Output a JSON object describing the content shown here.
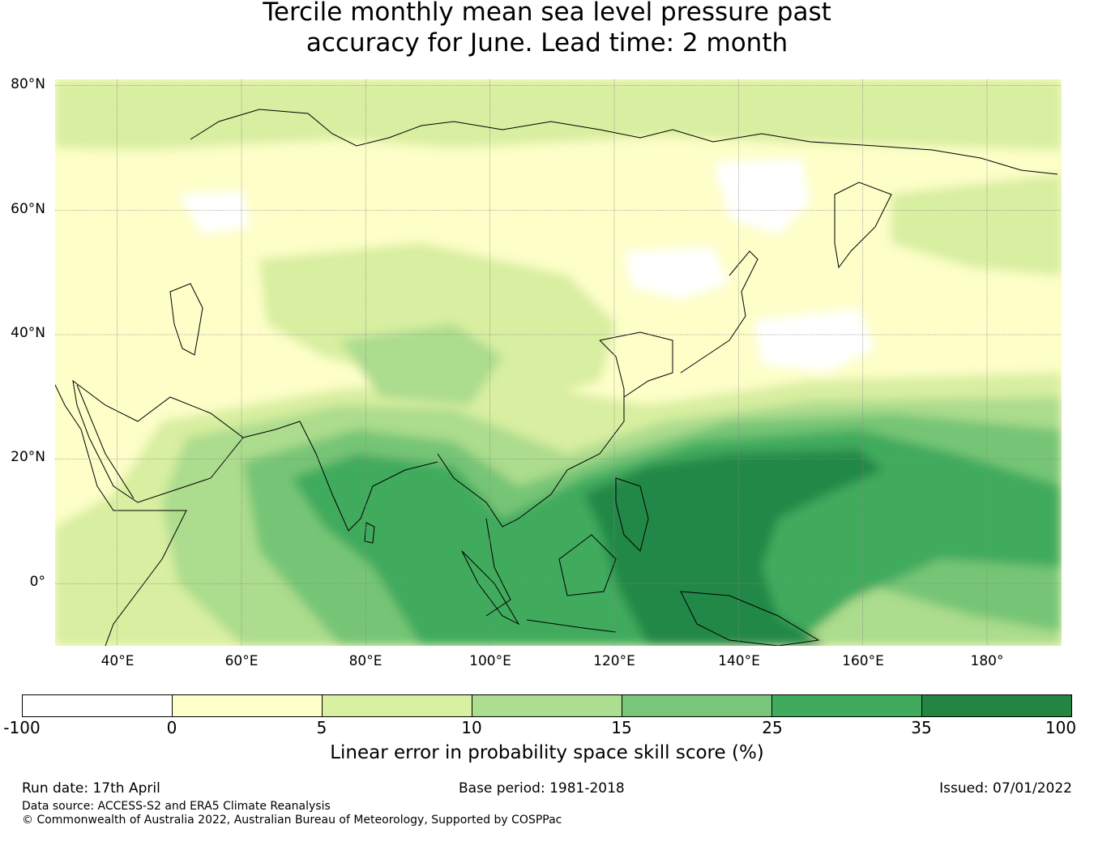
{
  "title": {
    "line1": "Tercile monthly mean sea level pressure past",
    "line2": "accuracy for June. Lead time: 2 month"
  },
  "map": {
    "lat_labels": [
      "80°N",
      "60°N",
      "40°N",
      "20°N",
      "0°"
    ],
    "lon_labels": [
      "40°E",
      "60°E",
      "80°E",
      "100°E",
      "120°E",
      "140°E",
      "160°E",
      "180°"
    ],
    "lon_range": [
      30,
      192
    ],
    "lat_range": [
      -10,
      81
    ],
    "gridlines": true,
    "ocean_default_color": "#fdfec8",
    "skill_regions": [
      {
        "band": "5-10",
        "color": "#d8eea0",
        "area": "Arctic coast and northern Siberia"
      },
      {
        "band": "10-15",
        "color": "#acdc8d",
        "area": "Central Asia / Tibet"
      },
      {
        "band": "15-25",
        "color": "#76c576",
        "area": "Bay of Bengal, Arabian Sea, tropical Pacific"
      },
      {
        "band": "25-35",
        "color": "#40aa5d",
        "area": "Indian Ocean, South China Sea, western Pacific"
      },
      {
        "band": "35-100",
        "color": "#228846",
        "area": "Philippine Sea / New Guinea"
      },
      {
        "band": "-100-0",
        "color": "#ffffff",
        "area": "patches in Siberia, Mongolia, North Pacific"
      }
    ]
  },
  "colorbar": {
    "ticks": [
      "-100",
      "0",
      "5",
      "10",
      "15",
      "25",
      "35",
      "100"
    ],
    "colors": [
      "#ffffff",
      "#ffffcc",
      "#d9f0a3",
      "#addd8e",
      "#78c679",
      "#41ab5d",
      "#238443"
    ],
    "label": "Linear error in probability space skill score (%)"
  },
  "footer": {
    "run_date": "Run date: 17th April",
    "base_period": "Base period: 1981-2018",
    "issued": "Issued: 07/01/2022",
    "data_source": "Data source: ACCESS-S2 and ERA5 Climate Reanalysis",
    "copyright": "© Commonwealth of Australia 2022, Australian Bureau of Meteorology, Supported by COSPPac"
  }
}
